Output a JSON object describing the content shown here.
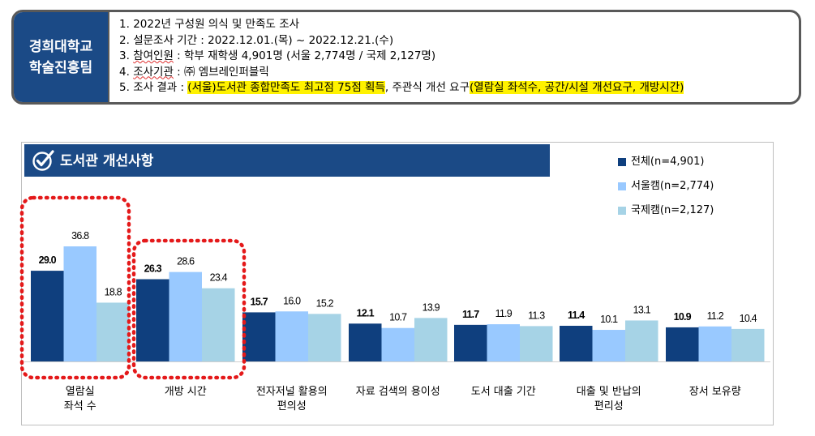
{
  "header": {
    "org_line1": "경희대학교",
    "org_line2": "학술진흥팀",
    "items": [
      {
        "num": "1.",
        "text": "2022년 구성원 의식 및 만족도 조사"
      },
      {
        "num": "2.",
        "text": "설문조사 기간 : 2022.12.01.(목) ~ 2022.12.21.(수)"
      },
      {
        "num": "3.",
        "label": "참여인원",
        "rest": " : 학부 재학생 4,901명 (서울 2,774명 / 국제 2,127명)"
      },
      {
        "num": "4.",
        "label": "조사기관",
        "rest": " : ㈜ 엠브레인퍼블릭"
      },
      {
        "num": "5.",
        "pre": "조사 결과 : ",
        "hl1": "(서울)도서관 종합만족도 최고점 75점 획득",
        "mid": ", 주관식 개선 요구",
        "hl2": "(열람실 좌석수, 공간/시설 개선요구, 개방시간)"
      }
    ]
  },
  "chart_data": {
    "type": "bar",
    "title": "도서관 개선사항",
    "categories": [
      [
        "열람실",
        "좌석 수"
      ],
      [
        "개방 시간"
      ],
      [
        "전자저널 활용의",
        "편의성"
      ],
      [
        "자료 검색의 용이성"
      ],
      [
        "도서 대출 기간"
      ],
      [
        "대출 및 반납의",
        "편리성"
      ],
      [
        "장서 보유량"
      ]
    ],
    "series": [
      {
        "name": "전체(n=4,901)",
        "color": "#0f3f7e",
        "values": [
          29.0,
          26.3,
          15.7,
          12.1,
          11.7,
          11.4,
          10.9
        ]
      },
      {
        "name": "서울캠(n=2,774)",
        "color": "#99c9ff",
        "values": [
          36.8,
          28.6,
          16.0,
          10.7,
          11.9,
          10.1,
          11.2
        ]
      },
      {
        "name": "국제캠(n=2,127)",
        "color": "#a6d3e6",
        "values": [
          18.8,
          23.4,
          15.2,
          13.9,
          11.3,
          13.1,
          10.4
        ]
      }
    ],
    "ylim": [
      0,
      40
    ],
    "legend": "top-right",
    "grid": false,
    "highlighted_categories": [
      0,
      1
    ]
  }
}
